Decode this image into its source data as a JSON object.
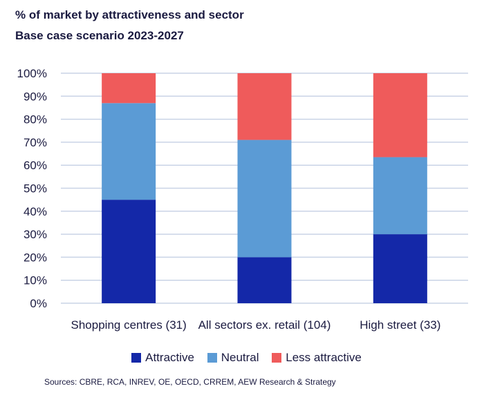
{
  "chart_data": {
    "type": "bar",
    "stacked": true,
    "title": "% of market by attractiveness and sector",
    "subtitle": "Base case scenario 2023-2027",
    "categories": [
      "Shopping centres (31)",
      "All sectors ex. retail (104)",
      "High street (33)"
    ],
    "series": [
      {
        "name": "Attractive",
        "color": "#1428a8",
        "values": [
          45,
          20,
          30
        ]
      },
      {
        "name": "Neutral",
        "color": "#5b9bd5",
        "values": [
          42,
          51,
          33.5
        ]
      },
      {
        "name": "Less attractive",
        "color": "#ef5b5b",
        "values": [
          13,
          29,
          36.5
        ]
      }
    ],
    "ylim": [
      0,
      100
    ],
    "yticks": [
      "0%",
      "10%",
      "20%",
      "30%",
      "40%",
      "50%",
      "60%",
      "70%",
      "80%",
      "90%",
      "100%"
    ],
    "grid": true,
    "legend_position": "bottom",
    "source": "Sources: CBRE, RCA, INREV, OE, OECD, CRREM, AEW Research & Strategy"
  }
}
